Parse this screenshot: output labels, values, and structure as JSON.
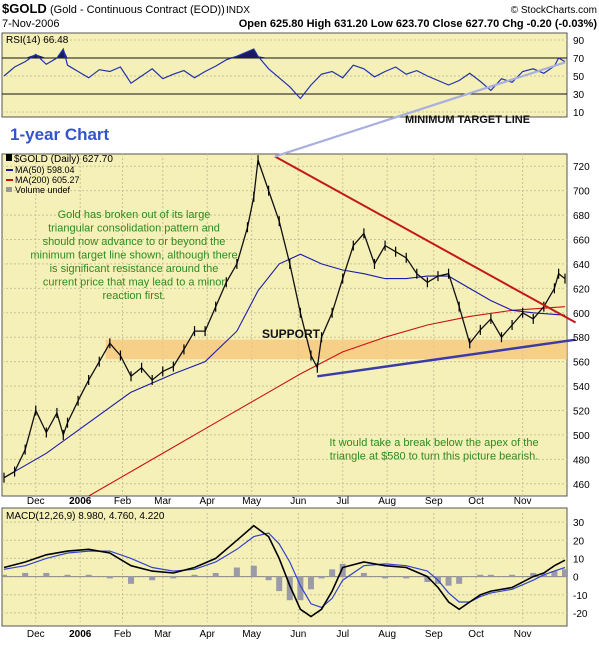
{
  "header": {
    "symbol": "$GOLD",
    "name": "(Gold - Continuous Contract (EOD))",
    "exchange": "INDX",
    "date": "7-Nov-2006",
    "quote": "Open 625.80   High 631.20   Low 623.70   Close 627.70   Chg -0.20 (-0.03%)",
    "watermark": "© StockCharts.com"
  },
  "chart_data": [
    {
      "type": "line",
      "panel": "RSI",
      "label": "RSI(14) 66.48",
      "ylim": [
        10,
        90
      ],
      "y_ticks": [
        90,
        70,
        50,
        30,
        10
      ],
      "ref_lines": [
        70,
        30
      ],
      "annotation": "MINIMUM TARGET LINE",
      "series": [
        {
          "name": "RSI(14)",
          "x": [
            0,
            5,
            10,
            15,
            20,
            25,
            28,
            30,
            35,
            40,
            45,
            50,
            55,
            60,
            65,
            70,
            75,
            80,
            85,
            90,
            95,
            100,
            105,
            110,
            115,
            118,
            120,
            125,
            130,
            135,
            140,
            145,
            150,
            155,
            160,
            165,
            170,
            175,
            180,
            185,
            190,
            195,
            200,
            205,
            210,
            215,
            220,
            225,
            230,
            235,
            240,
            245,
            250,
            255,
            260,
            262,
            265
          ],
          "values": [
            50,
            60,
            66,
            74,
            63,
            70,
            80,
            62,
            55,
            48,
            57,
            55,
            60,
            42,
            50,
            58,
            47,
            52,
            56,
            48,
            55,
            61,
            68,
            72,
            77,
            80,
            72,
            58,
            48,
            38,
            25,
            40,
            52,
            55,
            48,
            62,
            58,
            49,
            55,
            60,
            52,
            56,
            50,
            45,
            40,
            45,
            53,
            44,
            34,
            47,
            43,
            55,
            58,
            53,
            61,
            70,
            66
          ]
        }
      ]
    },
    {
      "type": "line",
      "panel": "Price",
      "title": "1-year Chart",
      "legend": [
        "$GOLD (Daily) 627.70",
        "MA(50) 598.04",
        "MA(200) 605.27",
        "Volume undef"
      ],
      "ylim": [
        450,
        730
      ],
      "y_ticks": [
        720,
        700,
        680,
        660,
        640,
        620,
        600,
        580,
        560,
        540,
        520,
        500,
        480,
        460
      ],
      "x_range": [
        0,
        265
      ],
      "x_ticks": [
        {
          "x": 15,
          "label": "Dec"
        },
        {
          "x": 36,
          "label": "2006"
        },
        {
          "x": 56,
          "label": "Feb"
        },
        {
          "x": 75,
          "label": "Mar"
        },
        {
          "x": 96,
          "label": "Apr"
        },
        {
          "x": 117,
          "label": "May"
        },
        {
          "x": 139,
          "label": "Jun"
        },
        {
          "x": 160,
          "label": "Jul"
        },
        {
          "x": 181,
          "label": "Aug"
        },
        {
          "x": 203,
          "label": "Sep"
        },
        {
          "x": 223,
          "label": "Oct"
        },
        {
          "x": 245,
          "label": "Nov"
        }
      ],
      "series": [
        {
          "name": "$GOLD (Daily)",
          "x": [
            0,
            5,
            10,
            15,
            20,
            25,
            28,
            30,
            35,
            40,
            45,
            50,
            55,
            60,
            65,
            70,
            75,
            80,
            85,
            90,
            95,
            100,
            105,
            110,
            115,
            118,
            120,
            125,
            130,
            135,
            140,
            145,
            148,
            150,
            155,
            160,
            165,
            170,
            175,
            180,
            185,
            190,
            195,
            200,
            205,
            210,
            215,
            220,
            225,
            230,
            235,
            240,
            245,
            250,
            255,
            260,
            262,
            265
          ],
          "values": [
            465,
            470,
            488,
            520,
            502,
            518,
            500,
            510,
            528,
            545,
            560,
            575,
            565,
            548,
            555,
            545,
            552,
            556,
            570,
            585,
            585,
            605,
            625,
            640,
            670,
            695,
            725,
            700,
            675,
            640,
            600,
            565,
            555,
            580,
            600,
            628,
            655,
            665,
            640,
            655,
            650,
            645,
            632,
            625,
            630,
            632,
            605,
            575,
            586,
            595,
            580,
            590,
            600,
            595,
            605,
            620,
            632,
            628
          ]
        },
        {
          "name": "MA(50)",
          "x": [
            0,
            20,
            40,
            60,
            80,
            95,
            110,
            120,
            130,
            140,
            150,
            160,
            170,
            180,
            190,
            200,
            210,
            220,
            230,
            240,
            250,
            265
          ],
          "values": [
            465,
            485,
            510,
            535,
            550,
            560,
            585,
            618,
            640,
            648,
            640,
            635,
            632,
            628,
            628,
            630,
            630,
            620,
            610,
            602,
            600,
            598
          ]
        },
        {
          "name": "MA(200)",
          "x": [
            40,
            60,
            80,
            100,
            120,
            140,
            160,
            180,
            200,
            220,
            240,
            265
          ],
          "values": [
            450,
            470,
            490,
            510,
            530,
            550,
            568,
            580,
            590,
            597,
            602,
            605
          ]
        }
      ],
      "lines": [
        {
          "name": "resistance",
          "x": [
            128,
            270
          ],
          "values": [
            728,
            592
          ]
        },
        {
          "name": "support",
          "x": [
            148,
            270
          ],
          "values": [
            548,
            578
          ]
        },
        {
          "name": "target",
          "x": [
            128,
            265
          ],
          "values": [
            728,
            805
          ]
        }
      ],
      "support_band": {
        "label": "SUPPORT",
        "x": [
          48,
          270
        ],
        "values": [
          562,
          578
        ]
      },
      "annotations": [
        "Gold has broken out of its large triangular consolidation pattern and should now advance to or beyond the minimum target line shown, although there is significant resistance around the current price that may lead to a minor reaction first.",
        "It would take a break below the apex of the triangle at $580 to turn this picture bearish."
      ]
    },
    {
      "type": "line",
      "panel": "MACD",
      "label": "MACD(12,26,9) 8.980, 4.760, 4.220",
      "ylim": [
        -25,
        35
      ],
      "y_ticks": [
        30,
        20,
        10,
        0,
        -10,
        -20
      ],
      "x_ticks": [
        {
          "x": 15,
          "label": "Dec"
        },
        {
          "x": 36,
          "label": "2006"
        },
        {
          "x": 56,
          "label": "Feb"
        },
        {
          "x": 75,
          "label": "Mar"
        },
        {
          "x": 96,
          "label": "Apr"
        },
        {
          "x": 117,
          "label": "May"
        },
        {
          "x": 139,
          "label": "Jun"
        },
        {
          "x": 160,
          "label": "Jul"
        },
        {
          "x": 181,
          "label": "Aug"
        },
        {
          "x": 203,
          "label": "Sep"
        },
        {
          "x": 223,
          "label": "Oct"
        },
        {
          "x": 245,
          "label": "Nov"
        }
      ],
      "series": [
        {
          "name": "MACD",
          "x": [
            0,
            10,
            20,
            30,
            40,
            50,
            60,
            70,
            80,
            90,
            100,
            110,
            118,
            125,
            130,
            135,
            140,
            145,
            150,
            155,
            160,
            170,
            180,
            190,
            200,
            205,
            210,
            215,
            220,
            225,
            230,
            240,
            250,
            255,
            260,
            265
          ],
          "values": [
            5,
            8,
            12,
            14,
            15,
            13,
            6,
            3,
            2,
            5,
            10,
            20,
            28,
            22,
            10,
            -5,
            -18,
            -22,
            -18,
            -8,
            5,
            8,
            6,
            5,
            0,
            -6,
            -14,
            -18,
            -14,
            -10,
            -8,
            -6,
            0,
            2,
            6,
            9
          ]
        },
        {
          "name": "Signal",
          "x": [
            0,
            10,
            20,
            30,
            40,
            50,
            60,
            70,
            80,
            90,
            100,
            110,
            118,
            125,
            130,
            135,
            140,
            145,
            150,
            155,
            160,
            170,
            180,
            190,
            200,
            205,
            210,
            215,
            220,
            225,
            230,
            240,
            250,
            255,
            260,
            265
          ],
          "values": [
            4,
            6,
            10,
            13,
            14,
            14,
            10,
            5,
            3,
            4,
            8,
            15,
            22,
            24,
            18,
            8,
            -5,
            -15,
            -17,
            -12,
            -2,
            6,
            7,
            6,
            3,
            -2,
            -9,
            -14,
            -14,
            -11,
            -9,
            -7,
            -2,
            1,
            3,
            5
          ]
        }
      ]
    }
  ]
}
